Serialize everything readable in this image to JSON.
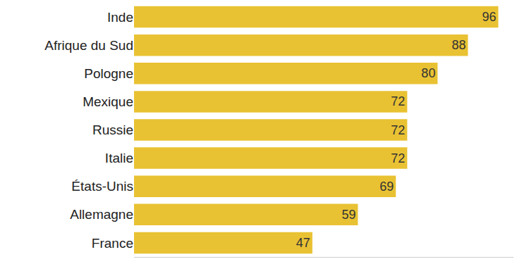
{
  "chart_data": {
    "type": "bar",
    "orientation": "horizontal",
    "categories": [
      "Inde",
      "Afrique du Sud",
      "Pologne",
      "Mexique",
      "Russie",
      "Italie",
      "États-Unis",
      "Allemagne",
      "France"
    ],
    "values": [
      96,
      88,
      80,
      72,
      72,
      72,
      69,
      59,
      47
    ],
    "color": "#e9c233",
    "xlim": [
      0,
      100
    ],
    "data_labels": true,
    "tick_labels": "y",
    "grid": false
  }
}
